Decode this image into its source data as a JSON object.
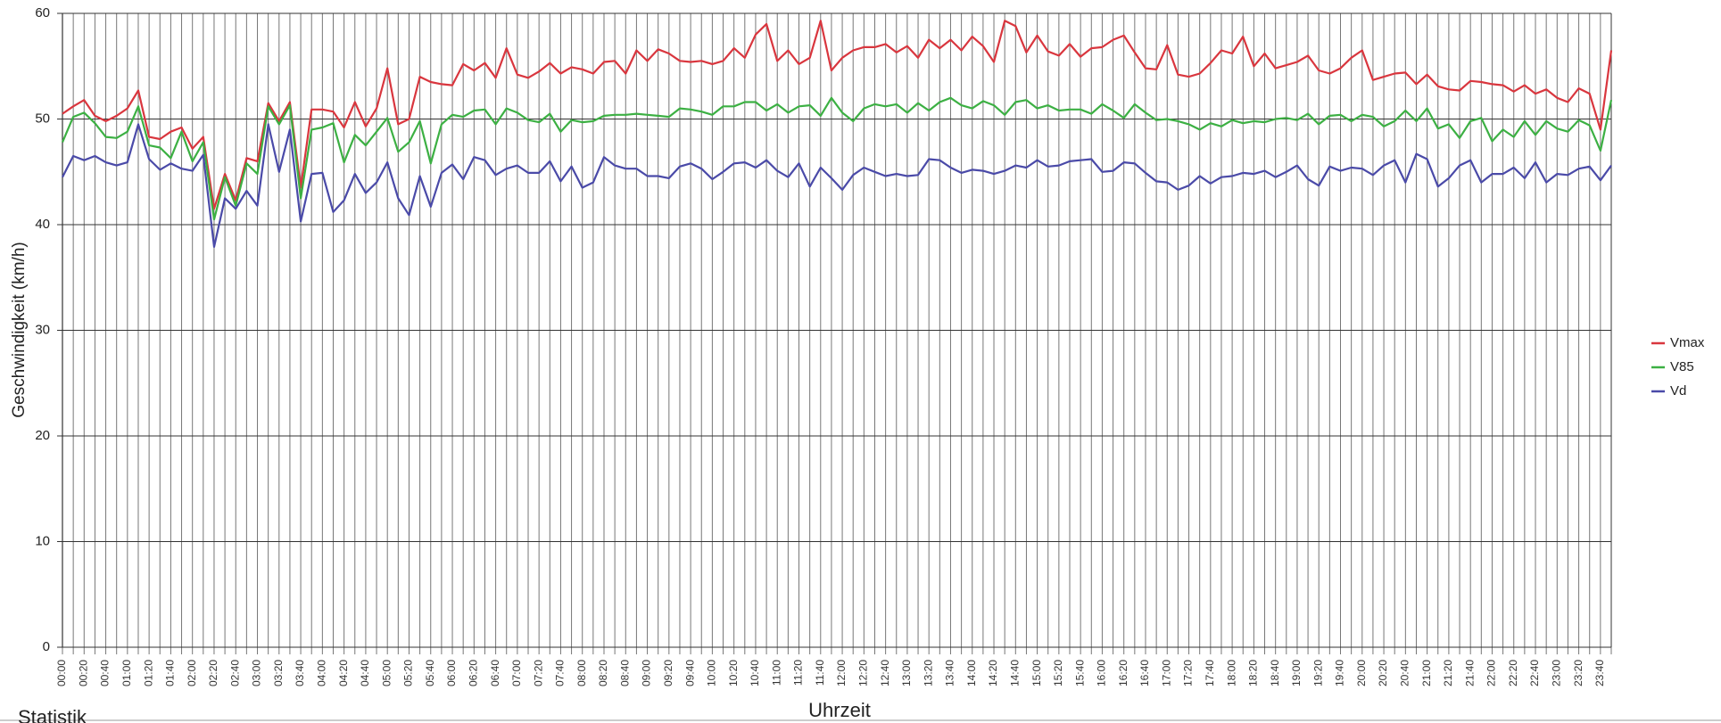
{
  "chart_data": {
    "type": "line",
    "y_label": "Geschwindigkeit (km/h)",
    "x_label": "Uhrzeit",
    "categories": [
      "00:00",
      null,
      "00:20",
      null,
      "00:40",
      null,
      "01:00",
      null,
      "01:20",
      null,
      "01:40",
      null,
      "02:00",
      null,
      "02:20",
      null,
      "02:40",
      null,
      "03:00",
      null,
      "03:20",
      null,
      "03:40",
      null,
      "04:00",
      null,
      "04:20",
      null,
      "04:40",
      null,
      "05:00",
      null,
      "05:20",
      null,
      "05:40",
      null,
      "06:00",
      null,
      "06:20",
      null,
      "06:40",
      null,
      "07:00",
      null,
      "07:20",
      null,
      "07:40",
      null,
      "08:00",
      null,
      "08:20",
      null,
      "08:40",
      null,
      "09:00",
      null,
      "09:20",
      null,
      "09:40",
      null,
      "10:00",
      null,
      "10:20",
      null,
      "10:40",
      null,
      "11:00",
      null,
      "11:20",
      null,
      "11:40",
      null,
      "12:00",
      null,
      "12:20",
      null,
      "12:40",
      null,
      "13:00",
      null,
      "13:20",
      null,
      "13:40",
      null,
      "14:00",
      null,
      "14:20",
      null,
      "14:40",
      null,
      "15:00",
      null,
      "15:20",
      null,
      "15:40",
      null,
      "16:00",
      null,
      "16:20",
      null,
      "16:40",
      null,
      "17:00",
      null,
      "17:20",
      null,
      "17:40",
      null,
      "18:00",
      null,
      "18:20",
      null,
      "18:40",
      null,
      "19:00",
      null,
      "19:20",
      null,
      "19:40",
      null,
      "20:00",
      null,
      "20:20",
      null,
      "20:40",
      null,
      "21:00",
      null,
      "21:20",
      null,
      "21:40",
      null,
      "22:00",
      null,
      "22:20",
      null,
      "22:40",
      null,
      "23:00",
      null,
      "23:20",
      null,
      "23:40",
      null
    ],
    "series": [
      {
        "name": "Vmax",
        "color": "#d9363e",
        "values": [
          50.5,
          51.2,
          51.8,
          50.3,
          49.8,
          50.3,
          51.0,
          52.7,
          48.3,
          48.1,
          48.8,
          49.2,
          47.2,
          48.3,
          41.5,
          44.8,
          42.3,
          46.3,
          46.0,
          51.5,
          49.8,
          51.6,
          43.5,
          50.9,
          50.9,
          50.7,
          49.2,
          51.6,
          49.3,
          51.0,
          54.8,
          49.5,
          50.0,
          54.0,
          53.5,
          53.3,
          53.2,
          55.2,
          54.6,
          55.3,
          53.9,
          56.7,
          54.2,
          53.9,
          54.5,
          55.3,
          54.3,
          54.9,
          54.7,
          54.3,
          55.4,
          55.5,
          54.3,
          56.5,
          55.5,
          56.6,
          56.2,
          55.5,
          55.4,
          55.5,
          55.2,
          55.5,
          56.7,
          55.8,
          58.0,
          59.0,
          55.5,
          56.5,
          55.2,
          55.8,
          59.3,
          54.6,
          55.8,
          56.5,
          56.8,
          56.8,
          57.1,
          56.3,
          56.9,
          55.8,
          57.5,
          56.7,
          57.5,
          56.5,
          57.8,
          56.9,
          55.4,
          59.3,
          58.8,
          56.3,
          57.9,
          56.4,
          56.0,
          57.1,
          55.9,
          56.7,
          56.8,
          57.5,
          57.9,
          56.3,
          54.8,
          54.7,
          57.0,
          54.2,
          54.0,
          54.3,
          55.3,
          56.5,
          56.2,
          57.8,
          55.0,
          56.2,
          54.8,
          55.1,
          55.4,
          56.0,
          54.6,
          54.3,
          54.8,
          55.8,
          56.5,
          53.7,
          54.0,
          54.3,
          54.4,
          53.3,
          54.2,
          53.1,
          52.8,
          52.7,
          53.6,
          53.5,
          53.3,
          53.2,
          52.6,
          53.2,
          52.4,
          52.8,
          52.0,
          51.6,
          52.9,
          52.4,
          49.0,
          56.5
        ]
      },
      {
        "name": "V85",
        "color": "#3cb043",
        "values": [
          47.8,
          50.2,
          50.6,
          49.6,
          48.3,
          48.2,
          48.8,
          51.2,
          47.5,
          47.3,
          46.3,
          48.8,
          46.0,
          47.8,
          40.5,
          44.5,
          41.8,
          45.8,
          44.8,
          51.2,
          49.5,
          51.3,
          42.5,
          49.0,
          49.2,
          49.6,
          45.9,
          48.5,
          47.5,
          48.8,
          50.1,
          46.9,
          47.8,
          49.8,
          45.8,
          49.5,
          50.4,
          50.2,
          50.8,
          50.9,
          49.5,
          51.0,
          50.6,
          49.9,
          49.7,
          50.5,
          48.8,
          49.9,
          49.7,
          49.8,
          50.3,
          50.4,
          50.4,
          50.5,
          50.4,
          50.3,
          50.2,
          51.0,
          50.9,
          50.7,
          50.4,
          51.2,
          51.2,
          51.6,
          51.6,
          50.8,
          51.4,
          50.6,
          51.2,
          51.3,
          50.3,
          52.0,
          50.6,
          49.8,
          51.0,
          51.4,
          51.2,
          51.4,
          50.6,
          51.5,
          50.8,
          51.6,
          52.0,
          51.3,
          51.0,
          51.7,
          51.3,
          50.4,
          51.6,
          51.8,
          51.0,
          51.3,
          50.8,
          50.9,
          50.9,
          50.5,
          51.4,
          50.8,
          50.1,
          51.4,
          50.6,
          49.9,
          50.0,
          49.8,
          49.5,
          49.0,
          49.6,
          49.3,
          49.9,
          49.6,
          49.8,
          49.7,
          50.0,
          50.1,
          49.9,
          50.5,
          49.5,
          50.3,
          50.4,
          49.8,
          50.4,
          50.2,
          49.3,
          49.8,
          50.8,
          49.8,
          51.0,
          49.1,
          49.5,
          48.2,
          49.8,
          50.1,
          47.9,
          49.0,
          48.3,
          49.8,
          48.5,
          49.8,
          49.1,
          48.8,
          49.9,
          49.4,
          47.0,
          51.8
        ]
      },
      {
        "name": "Vd",
        "color": "#4a4aa8",
        "values": [
          44.5,
          46.5,
          46.1,
          46.5,
          45.9,
          45.6,
          45.9,
          49.5,
          46.2,
          45.2,
          45.8,
          45.3,
          45.1,
          46.6,
          37.9,
          42.5,
          41.5,
          43.2,
          41.8,
          49.5,
          45.0,
          49.0,
          40.3,
          44.8,
          44.9,
          41.2,
          42.3,
          44.8,
          43.0,
          44.0,
          45.9,
          42.5,
          40.9,
          44.6,
          41.7,
          44.9,
          45.7,
          44.3,
          46.4,
          46.1,
          44.7,
          45.3,
          45.6,
          44.9,
          44.9,
          46.0,
          44.1,
          45.5,
          43.5,
          44.0,
          46.4,
          45.6,
          45.3,
          45.3,
          44.6,
          44.6,
          44.4,
          45.5,
          45.8,
          45.3,
          44.3,
          45.0,
          45.8,
          45.9,
          45.4,
          46.1,
          45.1,
          44.5,
          45.8,
          43.6,
          45.4,
          44.4,
          43.3,
          44.7,
          45.4,
          45.0,
          44.6,
          44.8,
          44.6,
          44.7,
          46.2,
          46.1,
          45.4,
          44.9,
          45.2,
          45.1,
          44.8,
          45.1,
          45.6,
          45.4,
          46.1,
          45.5,
          45.6,
          46.0,
          46.1,
          46.2,
          45.0,
          45.1,
          45.9,
          45.8,
          44.9,
          44.1,
          44.0,
          43.3,
          43.7,
          44.6,
          43.9,
          44.5,
          44.6,
          44.9,
          44.8,
          45.1,
          44.5,
          45.0,
          45.6,
          44.3,
          43.7,
          45.5,
          45.1,
          45.4,
          45.3,
          44.7,
          45.6,
          46.1,
          44.0,
          46.7,
          46.2,
          43.6,
          44.4,
          45.6,
          46.1,
          44.0,
          44.8,
          44.8,
          45.4,
          44.4,
          45.9,
          44.0,
          44.8,
          44.7,
          45.3,
          45.5,
          44.2,
          45.6
        ]
      }
    ],
    "ylim": [
      0,
      60
    ],
    "yticks": [
      0,
      10,
      20,
      30,
      40,
      50,
      60
    ],
    "grid": true,
    "legend": "right"
  },
  "section_label": "Statistik"
}
